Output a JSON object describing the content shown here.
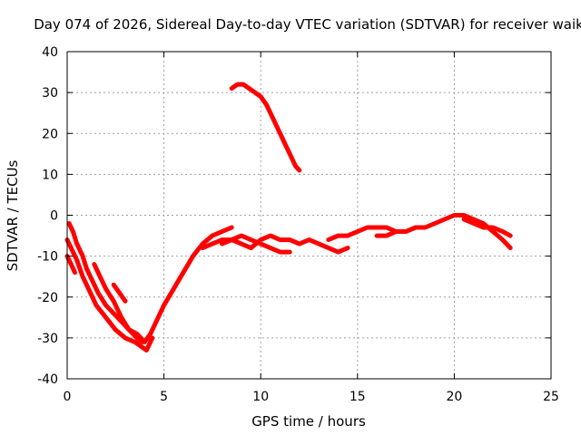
{
  "chart_data": {
    "type": "line",
    "title": "Day 074 of 2026, Sidereal Day-to-day VTEC variation (SDTVAR) for receiver waik",
    "xlabel": "GPS time / hours",
    "ylabel": "SDTVAR / TECUs",
    "xlim": [
      0,
      25
    ],
    "ylim": [
      -40,
      40
    ],
    "xticks": [
      0,
      5,
      10,
      15,
      20,
      25
    ],
    "yticks": [
      -40,
      -30,
      -20,
      -10,
      0,
      10,
      20,
      30,
      40
    ],
    "grid": true,
    "series_color": "#ff0000",
    "series": [
      {
        "name": "trace-1",
        "x": [
          0.0,
          0.2,
          0.5,
          0.8,
          1.1,
          1.5,
          2.0,
          2.5,
          3.0,
          3.5,
          3.8,
          4.1,
          4.4
        ],
        "y": [
          -6,
          -8,
          -11,
          -15,
          -18,
          -22,
          -25,
          -28,
          -30,
          -31,
          -32,
          -33,
          -30
        ]
      },
      {
        "name": "trace-2",
        "x": [
          0.1,
          0.3,
          0.5,
          0.8,
          1.0,
          1.3,
          1.6,
          2.0,
          2.4,
          2.8,
          3.2,
          3.6,
          4.0,
          4.3,
          4.6,
          5.0,
          5.5,
          6.0,
          6.5,
          7.0,
          7.5,
          8.0,
          8.5
        ],
        "y": [
          -2,
          -4,
          -7,
          -10,
          -13,
          -16,
          -19,
          -22,
          -24,
          -26,
          -28,
          -29,
          -31,
          -29,
          -26,
          -22,
          -18,
          -14,
          -10,
          -7,
          -5,
          -4,
          -3
        ]
      },
      {
        "name": "trace-3",
        "x": [
          1.4,
          1.7,
          2.0,
          2.4,
          2.8,
          3.2,
          3.6,
          3.9
        ],
        "y": [
          -12,
          -15,
          -18,
          -21,
          -25,
          -28,
          -30,
          -31
        ]
      },
      {
        "name": "trace-4",
        "x": [
          2.4,
          2.7,
          3.0
        ],
        "y": [
          -17,
          -19,
          -21
        ]
      },
      {
        "name": "trace-5",
        "x": [
          0.0,
          0.2,
          0.4
        ],
        "y": [
          -10,
          -12,
          -14
        ]
      },
      {
        "name": "trace-6",
        "x": [
          7.0,
          7.5,
          8.0,
          8.5,
          9.0,
          9.5,
          10.0,
          10.5,
          11.0,
          11.5,
          12.0,
          12.5,
          13.0,
          13.5,
          14.0,
          14.5
        ],
        "y": [
          -8,
          -7,
          -6,
          -6,
          -7,
          -8,
          -6,
          -5,
          -6,
          -6,
          -7,
          -6,
          -7,
          -8,
          -9,
          -8
        ]
      },
      {
        "name": "trace-7",
        "x": [
          8.0,
          8.5,
          9.0,
          9.5,
          10.0,
          10.5,
          11.0,
          11.5
        ],
        "y": [
          -7,
          -6,
          -5,
          -6,
          -7,
          -8,
          -9,
          -9
        ]
      },
      {
        "name": "trace-8",
        "x": [
          8.5,
          8.8,
          9.1,
          9.4,
          9.7,
          10.0,
          10.3,
          10.6,
          10.9,
          11.2,
          11.5,
          11.8,
          12.0
        ],
        "y": [
          31,
          32,
          32,
          31,
          30,
          29,
          27,
          24,
          21,
          18,
          15,
          12,
          11
        ]
      },
      {
        "name": "trace-9",
        "x": [
          13.5,
          14.0,
          14.5,
          15.0,
          15.5,
          16.0,
          16.5,
          17.0,
          17.5,
          18.0,
          18.5,
          19.0,
          19.5,
          20.0,
          20.5,
          21.0,
          21.5,
          22.0,
          22.5,
          22.9
        ],
        "y": [
          -6,
          -5,
          -5,
          -4,
          -3,
          -3,
          -3,
          -4,
          -4,
          -3,
          -3,
          -2,
          -1,
          0,
          0,
          -1,
          -2,
          -4,
          -6,
          -8
        ]
      },
      {
        "name": "trace-10",
        "x": [
          16.0,
          16.5,
          17.0,
          17.5,
          18.0
        ],
        "y": [
          -5,
          -5,
          -4,
          -4,
          -3
        ]
      },
      {
        "name": "trace-11",
        "x": [
          20.5,
          21.0,
          21.5,
          22.0,
          22.5,
          22.9
        ],
        "y": [
          -1,
          -2,
          -3,
          -3,
          -4,
          -5
        ]
      }
    ]
  }
}
